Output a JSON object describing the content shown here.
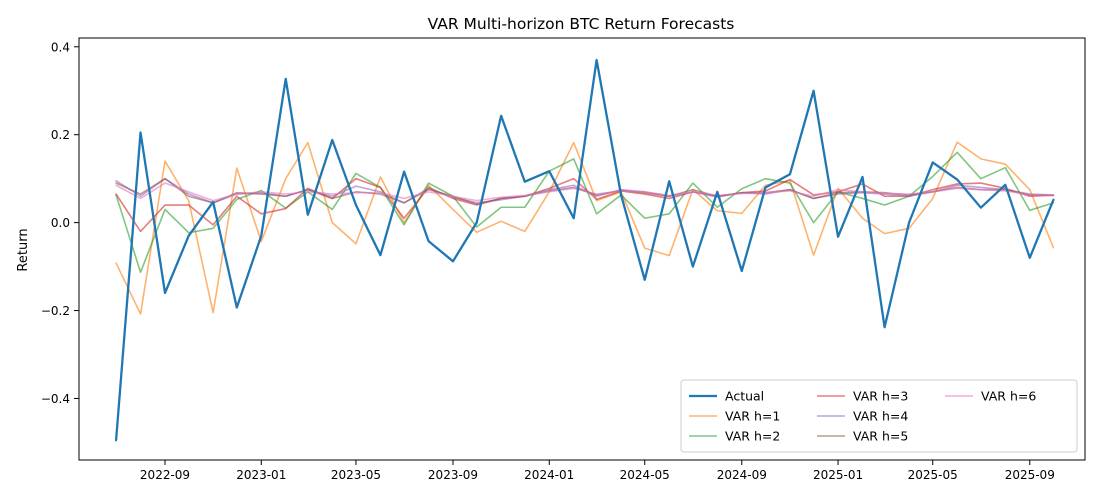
{
  "chart_data": {
    "type": "line",
    "title": "VAR Multi-horizon BTC Return Forecasts",
    "xlabel": "",
    "ylabel": "Return",
    "x": [
      "2022-07",
      "2022-08",
      "2022-09",
      "2022-10",
      "2022-11",
      "2022-12",
      "2023-01",
      "2023-02",
      "2023-03",
      "2023-04",
      "2023-05",
      "2023-06",
      "2023-07",
      "2023-08",
      "2023-09",
      "2023-10",
      "2023-11",
      "2023-12",
      "2024-01",
      "2024-02",
      "2024-03",
      "2024-04",
      "2024-05",
      "2024-06",
      "2024-07",
      "2024-08",
      "2024-09",
      "2024-10",
      "2024-11",
      "2024-12",
      "2025-01",
      "2025-02",
      "2025-03",
      "2025-04",
      "2025-05",
      "2025-06",
      "2025-07",
      "2025-08",
      "2025-09",
      "2025-10"
    ],
    "xlim": [
      "2022-05-15",
      "2025-11-10"
    ],
    "ylim": [
      -0.54,
      0.42
    ],
    "xticks": [
      "2022-09",
      "2023-01",
      "2023-05",
      "2023-09",
      "2024-01",
      "2024-05",
      "2024-09",
      "2025-01",
      "2025-05",
      "2025-09"
    ],
    "yticks": [
      0.4,
      0.2,
      0.0,
      -0.2,
      -0.4
    ],
    "ytick_labels": [
      "0.4",
      "0.2",
      "0.0",
      "−0.2",
      "−0.4"
    ],
    "grid": false,
    "legend": {
      "position": "lower-right",
      "columns": 3
    },
    "series": [
      {
        "name": "Actual",
        "color": "#1f77b4",
        "emphasis": true,
        "values": [
          -0.495,
          0.205,
          -0.16,
          -0.03,
          0.047,
          -0.193,
          -0.03,
          0.327,
          0.018,
          0.188,
          0.04,
          -0.074,
          0.116,
          -0.042,
          -0.088,
          0.0,
          0.243,
          0.093,
          0.117,
          0.01,
          0.37,
          0.063,
          -0.13,
          0.094,
          -0.1,
          0.07,
          -0.11,
          0.08,
          0.11,
          0.3,
          -0.032,
          0.104,
          -0.238,
          0.0,
          0.137,
          0.098,
          0.034,
          0.086,
          -0.08,
          0.052
        ]
      },
      {
        "name": "VAR h=1",
        "color": "#ff7f0e",
        "values": [
          -0.092,
          -0.208,
          0.14,
          0.05,
          -0.205,
          0.124,
          -0.043,
          0.1,
          0.182,
          0.0,
          -0.048,
          0.104,
          0.0,
          0.085,
          0.03,
          -0.022,
          0.003,
          -0.02,
          0.07,
          0.182,
          0.05,
          0.07,
          -0.058,
          -0.075,
          0.075,
          0.027,
          0.021,
          0.085,
          0.096,
          -0.074,
          0.078,
          0.01,
          -0.025,
          -0.013,
          0.055,
          0.183,
          0.145,
          0.133,
          0.075,
          -0.057
        ]
      },
      {
        "name": "VAR h=2",
        "color": "#2ca02c",
        "values": [
          0.063,
          -0.113,
          0.03,
          -0.023,
          -0.013,
          0.053,
          0.073,
          0.033,
          0.07,
          0.03,
          0.112,
          0.08,
          -0.005,
          0.09,
          0.06,
          -0.01,
          0.035,
          0.035,
          0.117,
          0.145,
          0.02,
          0.063,
          0.01,
          0.02,
          0.09,
          0.035,
          0.077,
          0.1,
          0.09,
          0.0,
          0.07,
          0.055,
          0.04,
          0.06,
          0.105,
          0.16,
          0.1,
          0.125,
          0.028,
          0.045
        ]
      },
      {
        "name": "VAR h=3",
        "color": "#d62728",
        "values": [
          0.065,
          -0.02,
          0.04,
          0.04,
          -0.005,
          0.06,
          0.02,
          0.032,
          0.078,
          0.055,
          0.1,
          0.08,
          0.01,
          0.08,
          0.055,
          0.04,
          0.055,
          0.06,
          0.078,
          0.1,
          0.053,
          0.072,
          0.065,
          0.055,
          0.07,
          0.06,
          0.068,
          0.072,
          0.098,
          0.063,
          0.07,
          0.088,
          0.06,
          0.06,
          0.075,
          0.088,
          0.09,
          0.078,
          0.06,
          0.062
        ]
      },
      {
        "name": "VAR h=4",
        "color": "#9467bd",
        "values": [
          0.095,
          0.06,
          0.1,
          0.065,
          0.045,
          0.065,
          0.068,
          0.06,
          0.075,
          0.06,
          0.083,
          0.07,
          0.045,
          0.078,
          0.058,
          0.045,
          0.052,
          0.06,
          0.075,
          0.085,
          0.06,
          0.075,
          0.07,
          0.06,
          0.07,
          0.058,
          0.068,
          0.065,
          0.075,
          0.055,
          0.065,
          0.068,
          0.065,
          0.06,
          0.07,
          0.085,
          0.08,
          0.075,
          0.065,
          0.063
        ]
      },
      {
        "name": "VAR h=5",
        "color": "#8c564b",
        "values": [
          0.09,
          0.065,
          0.1,
          0.06,
          0.045,
          0.068,
          0.065,
          0.06,
          0.075,
          0.055,
          0.07,
          0.065,
          0.045,
          0.075,
          0.06,
          0.042,
          0.055,
          0.06,
          0.072,
          0.08,
          0.063,
          0.073,
          0.068,
          0.06,
          0.075,
          0.06,
          0.068,
          0.068,
          0.075,
          0.055,
          0.068,
          0.07,
          0.068,
          0.063,
          0.07,
          0.08,
          0.075,
          0.075,
          0.063,
          0.062
        ]
      },
      {
        "name": "VAR h=6",
        "color": "#e377c2",
        "values": [
          0.085,
          0.055,
          0.09,
          0.07,
          0.05,
          0.065,
          0.07,
          0.065,
          0.07,
          0.065,
          0.068,
          0.068,
          0.055,
          0.07,
          0.06,
          0.05,
          0.058,
          0.062,
          0.07,
          0.078,
          0.065,
          0.072,
          0.07,
          0.062,
          0.07,
          0.062,
          0.066,
          0.068,
          0.072,
          0.06,
          0.075,
          0.07,
          0.066,
          0.065,
          0.07,
          0.078,
          0.075,
          0.072,
          0.064,
          0.062
        ]
      }
    ]
  }
}
